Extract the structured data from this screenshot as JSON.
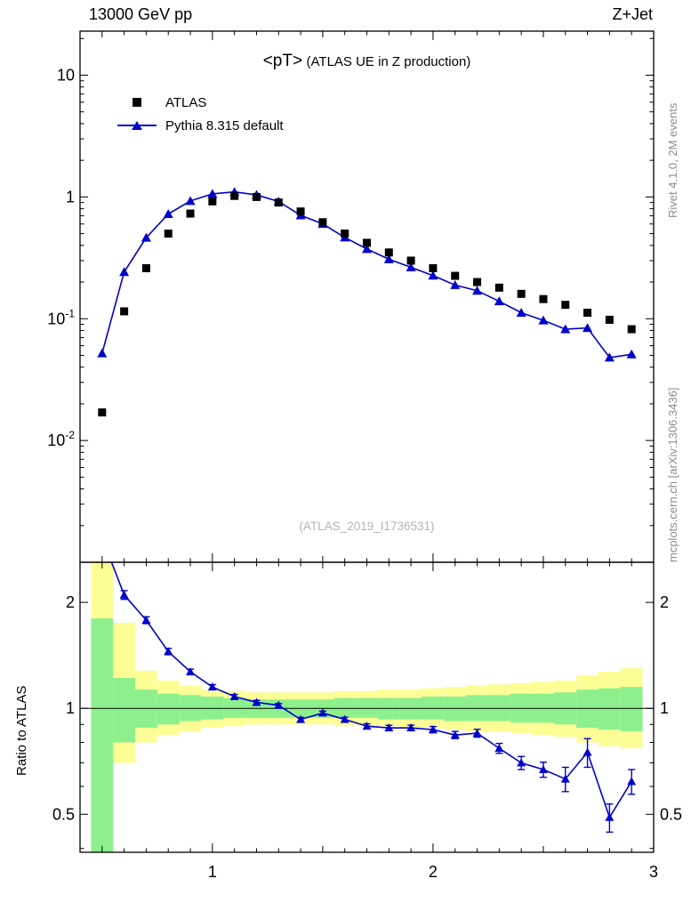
{
  "header": {
    "left": "13000 GeV pp",
    "right": "Z+Jet"
  },
  "title": {
    "main": "<pT>",
    "sub": "(ATLAS UE in Z production)"
  },
  "legend": [
    {
      "label": "ATLAS",
      "marker": "square",
      "color": "#000000"
    },
    {
      "label": "Pythia 8.315 default",
      "marker": "triangle-line",
      "color": "#0000cd"
    }
  ],
  "watermark": "(ATLAS_2019_I1736531)",
  "side_notes": {
    "top": "Rivet 4.1.0,  2M events",
    "bottom": "mcplots.cern.ch [arXiv:1306.3436]"
  },
  "labels": {
    "ratio_y": "Ratio to ATLAS"
  },
  "colors": {
    "pythia_blue": "#0000cd",
    "band_yellow": "#fdfd96",
    "band_green": "#8df08d",
    "frame": "#000000",
    "gray_text": "#8c8c8c",
    "watermark_gray": "#b4b4b4"
  },
  "chart_data": {
    "type": "line",
    "title": "<pT> (ATLAS UE in Z production)",
    "xlabel": "",
    "ylabel": "",
    "grid": false,
    "legend_position": "top-left",
    "x_axis": {
      "scale": "linear",
      "lim": [
        0.4,
        3.0
      ],
      "ticks": [
        {
          "value": 1,
          "label": "1"
        },
        {
          "value": 2,
          "label": "2"
        },
        {
          "value": 3,
          "label": "3"
        }
      ]
    },
    "main_y_axis": {
      "scale": "log",
      "lim": [
        0.001,
        23
      ],
      "ticks": [
        {
          "value": 10,
          "label": "10",
          "exp": ""
        },
        {
          "value": 1,
          "label": "1",
          "exp": ""
        },
        {
          "value": 0.1,
          "label": "10",
          "exp": "-1"
        },
        {
          "value": 0.01,
          "label": "10",
          "exp": "-2"
        }
      ]
    },
    "ratio_y_axis": {
      "scale": "log",
      "lim": [
        0.39,
        2.6
      ],
      "ticks": [
        {
          "value": 2,
          "label": "2"
        },
        {
          "value": 1,
          "label": "1"
        },
        {
          "value": 0.5,
          "label": "0.5"
        }
      ],
      "minor": [
        0.4,
        0.6,
        0.7,
        0.8,
        0.9
      ]
    },
    "bin_half_width": 0.05,
    "x": [
      0.5,
      0.6,
      0.7,
      0.8,
      0.9,
      1.0,
      1.1,
      1.2,
      1.3,
      1.4,
      1.5,
      1.6,
      1.7,
      1.8,
      1.9,
      2.0,
      2.1,
      2.2,
      2.3,
      2.4,
      2.5,
      2.6,
      2.7,
      2.8,
      2.9
    ],
    "series": [
      {
        "name": "ATLAS",
        "marker": "square",
        "color": "#000000",
        "values": [
          0.017,
          0.115,
          0.26,
          0.5,
          0.73,
          0.92,
          1.02,
          1.0,
          0.9,
          0.76,
          0.62,
          0.5,
          0.42,
          0.35,
          0.3,
          0.26,
          0.225,
          0.2,
          0.18,
          0.16,
          0.145,
          0.13,
          0.112,
          0.098,
          0.082
        ]
      },
      {
        "name": "Pythia 8.315 default",
        "marker": "triangle",
        "color": "#0000cd",
        "values": [
          0.052,
          0.242,
          0.463,
          0.725,
          0.927,
          1.06,
          1.1,
          1.04,
          0.918,
          0.707,
          0.601,
          0.465,
          0.374,
          0.308,
          0.264,
          0.226,
          0.189,
          0.17,
          0.139,
          0.112,
          0.097,
          0.082,
          0.084,
          0.048,
          0.051
        ]
      }
    ],
    "ratio": {
      "name": "Pythia 8.315 default / ATLAS",
      "values": [
        3.05,
        2.1,
        1.78,
        1.45,
        1.27,
        1.15,
        1.08,
        1.04,
        1.02,
        0.93,
        0.97,
        0.93,
        0.89,
        0.88,
        0.88,
        0.87,
        0.84,
        0.85,
        0.77,
        0.7,
        0.67,
        0.63,
        0.75,
        0.49,
        0.62
      ],
      "errors": [
        0,
        0.06,
        0.04,
        0.03,
        0.022,
        0.018,
        0.015,
        0.013,
        0.012,
        0.012,
        0.012,
        0.013,
        0.014,
        0.015,
        0.016,
        0.018,
        0.02,
        0.022,
        0.025,
        0.03,
        0.033,
        0.05,
        0.07,
        0.045,
        0.05
      ]
    },
    "bands": {
      "yellow": [
        [
          0.38,
          2.65
        ],
        [
          0.7,
          1.75
        ],
        [
          0.8,
          1.28
        ],
        [
          0.84,
          1.2
        ],
        [
          0.86,
          1.16
        ],
        [
          0.88,
          1.13
        ],
        [
          0.89,
          1.12
        ],
        [
          0.9,
          1.11
        ],
        [
          0.9,
          1.11
        ],
        [
          0.9,
          1.11
        ],
        [
          0.9,
          1.11
        ],
        [
          0.89,
          1.12
        ],
        [
          0.89,
          1.12
        ],
        [
          0.89,
          1.13
        ],
        [
          0.88,
          1.13
        ],
        [
          0.88,
          1.14
        ],
        [
          0.87,
          1.15
        ],
        [
          0.86,
          1.16
        ],
        [
          0.86,
          1.17
        ],
        [
          0.85,
          1.18
        ],
        [
          0.84,
          1.19
        ],
        [
          0.83,
          1.2
        ],
        [
          0.8,
          1.24
        ],
        [
          0.78,
          1.27
        ],
        [
          0.77,
          1.3
        ]
      ],
      "green": [
        [
          0.38,
          1.8
        ],
        [
          0.8,
          1.22
        ],
        [
          0.88,
          1.13
        ],
        [
          0.9,
          1.1
        ],
        [
          0.92,
          1.09
        ],
        [
          0.93,
          1.08
        ],
        [
          0.94,
          1.07
        ],
        [
          0.94,
          1.06
        ],
        [
          0.94,
          1.06
        ],
        [
          0.94,
          1.06
        ],
        [
          0.94,
          1.06
        ],
        [
          0.94,
          1.07
        ],
        [
          0.94,
          1.07
        ],
        [
          0.93,
          1.07
        ],
        [
          0.93,
          1.07
        ],
        [
          0.93,
          1.08
        ],
        [
          0.92,
          1.08
        ],
        [
          0.92,
          1.09
        ],
        [
          0.92,
          1.09
        ],
        [
          0.91,
          1.1
        ],
        [
          0.91,
          1.1
        ],
        [
          0.9,
          1.11
        ],
        [
          0.88,
          1.13
        ],
        [
          0.87,
          1.14
        ],
        [
          0.86,
          1.15
        ]
      ]
    }
  }
}
